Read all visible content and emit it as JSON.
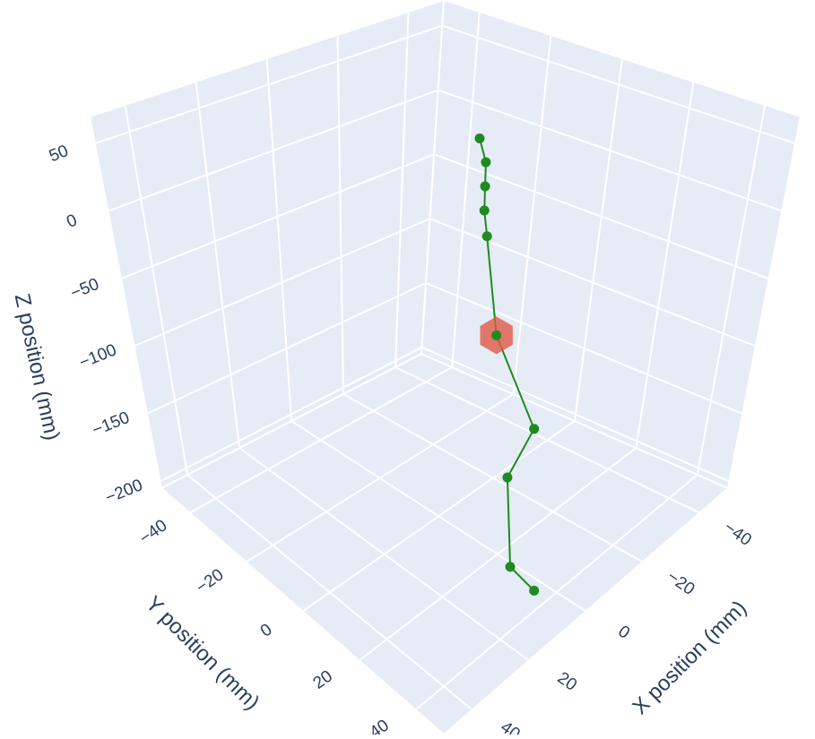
{
  "chart_data": {
    "type": "scatter3d",
    "xaxis_title": "X position (mm)",
    "yaxis_title": "Y position (mm)",
    "zaxis_title": "Z position (mm)",
    "xlim": [
      -50,
      50
    ],
    "ylim": [
      -50,
      50
    ],
    "zlim": [
      -205,
      70
    ],
    "xticks": [
      {
        "value": -40,
        "label": "−40"
      },
      {
        "value": -20,
        "label": "−20"
      },
      0,
      20,
      40
    ],
    "yticks": [
      {
        "value": -40,
        "label": "−40"
      },
      {
        "value": -20,
        "label": "−20"
      },
      0,
      20,
      40
    ],
    "zticks": [
      {
        "value": -200,
        "label": "−200"
      },
      {
        "value": -150,
        "label": "−150"
      },
      {
        "value": -100,
        "label": "−100"
      },
      {
        "value": -50,
        "label": "−50"
      },
      0,
      50
    ],
    "grid": true,
    "series": [
      {
        "color": "#1f8a1f",
        "mode": "lines+markers",
        "x": [
          -8,
          -8,
          -7,
          -6,
          -5,
          -5,
          -5,
          0,
          3,
          5
        ],
        "y": [
          2,
          4,
          5,
          6,
          8,
          12,
          25,
          22,
          27,
          37
        ],
        "z": [
          55,
          40,
          25,
          10,
          -5,
          -70,
          -120,
          -150,
          -200,
          -200
        ]
      },
      {
        "color": "#e05a47",
        "mode": "mesh",
        "x": [
          -5
        ],
        "y": [
          12
        ],
        "z": [
          -70
        ]
      }
    ]
  }
}
